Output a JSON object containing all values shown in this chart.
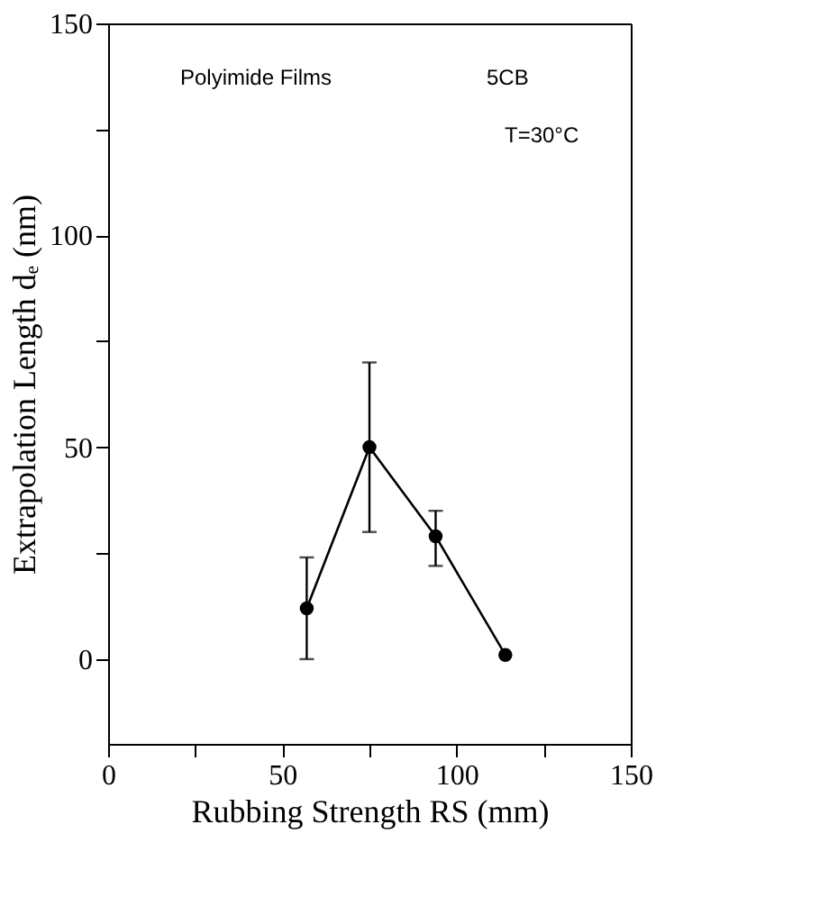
{
  "chart_data": {
    "type": "line",
    "xlabel": "Rubbing Strength RS (mm)",
    "ylabel": "Extrapolation Length dₑ (nm)",
    "x": [
      57,
      75,
      94,
      114
    ],
    "series": [
      {
        "color": "#000000",
        "values": [
          12,
          50,
          29,
          1
        ],
        "errors": [
          [
            0,
            24
          ],
          [
            30,
            70
          ],
          [
            22,
            35
          ],
          null
        ]
      }
    ],
    "marker": "circle",
    "xlim": [
      0,
      150
    ],
    "xticks": [
      0,
      {
        "value": 25,
        "label": null
      },
      50,
      {
        "value": 75,
        "label": null
      },
      100,
      {
        "value": 125,
        "label": null
      },
      150
    ],
    "ylim": [
      -20,
      150
    ],
    "yticks": [
      0,
      {
        "value": 25,
        "label": null
      },
      50,
      {
        "value": 75,
        "label": null
      },
      100,
      {
        "value": 125,
        "label": null
      },
      150
    ],
    "annotations": [
      "Polyimide Films",
      "5CB",
      "T=30°C"
    ],
    "grid": false
  }
}
